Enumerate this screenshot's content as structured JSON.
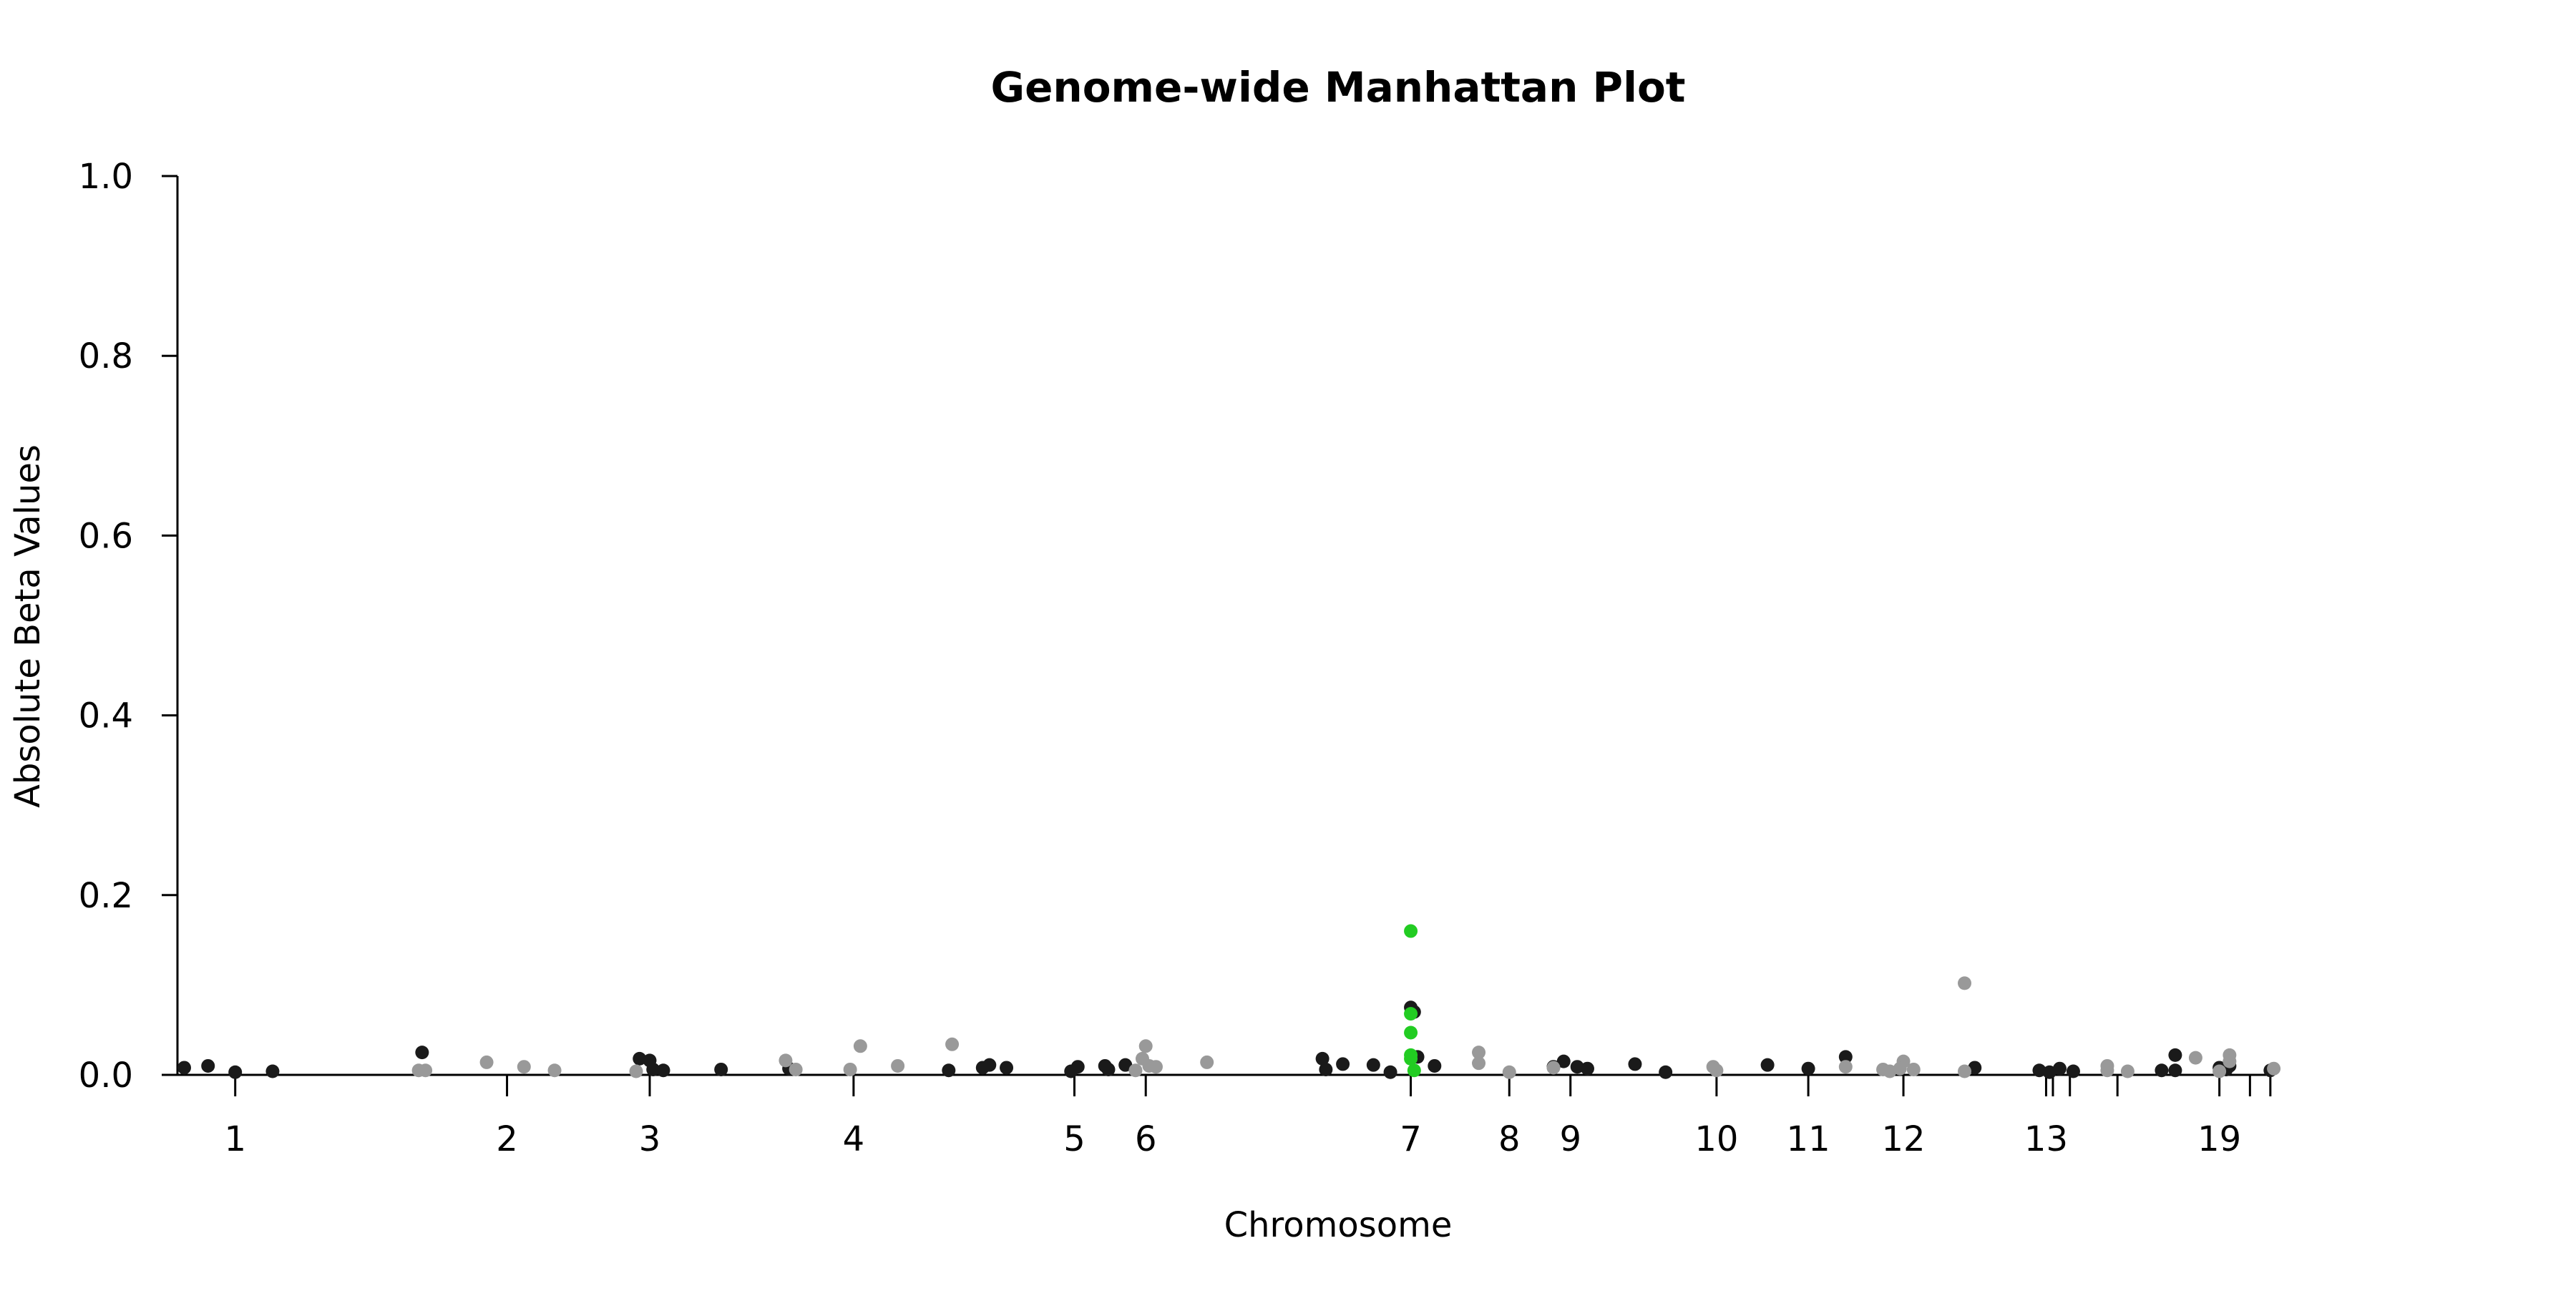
{
  "chart_data": {
    "type": "scatter",
    "title": "Genome-wide Manhattan Plot",
    "xlabel": "Chromosome",
    "ylabel": "Absolute Beta Values",
    "ylim": [
      0,
      1.0
    ],
    "yticks": [
      "0.0",
      "0.2",
      "0.4",
      "0.6",
      "0.8",
      "1.0"
    ],
    "xlim": [
      -0.85,
      32.5
    ],
    "grid": false,
    "x_ticks": [
      {
        "pos": 0.0,
        "label": "1"
      },
      {
        "pos": 4.0,
        "label": "2"
      },
      {
        "pos": 6.1,
        "label": "3"
      },
      {
        "pos": 9.1,
        "label": "4"
      },
      {
        "pos": 12.35,
        "label": "5"
      },
      {
        "pos": 13.4,
        "label": "6"
      },
      {
        "pos": 17.3,
        "label": "7"
      },
      {
        "pos": 18.75,
        "label": "8"
      },
      {
        "pos": 19.65,
        "label": "9"
      },
      {
        "pos": 21.8,
        "label": "10"
      },
      {
        "pos": 23.15,
        "label": "11"
      },
      {
        "pos": 24.55,
        "label": "12"
      },
      {
        "pos": 26.65,
        "label": "13"
      },
      {
        "pos": 26.75,
        "label": ""
      },
      {
        "pos": 27.0,
        "label": ""
      },
      {
        "pos": 27.7,
        "label": ""
      },
      {
        "pos": 29.2,
        "label": "19"
      },
      {
        "pos": 29.65,
        "label": ""
      },
      {
        "pos": 29.95,
        "label": ""
      }
    ],
    "colors": {
      "dark": "#1a1a1a",
      "grey": "#999999",
      "highlight": "#22cc22"
    },
    "series": [
      {
        "color_key": "dark",
        "points": [
          [
            -0.75,
            0.008
          ],
          [
            -0.4,
            0.01
          ],
          [
            0.0,
            0.003
          ],
          [
            0.55,
            0.004
          ],
          [
            2.75,
            0.025
          ],
          [
            5.95,
            0.018
          ],
          [
            6.1,
            0.016
          ],
          [
            6.15,
            0.006
          ],
          [
            6.3,
            0.005
          ],
          [
            7.15,
            0.006
          ],
          [
            8.15,
            0.007
          ],
          [
            10.5,
            0.005
          ],
          [
            11.0,
            0.008
          ],
          [
            11.1,
            0.011
          ],
          [
            11.35,
            0.008
          ],
          [
            12.3,
            0.004
          ],
          [
            12.4,
            0.009
          ],
          [
            12.8,
            0.01
          ],
          [
            12.85,
            0.006
          ],
          [
            13.1,
            0.011
          ],
          [
            16.0,
            0.018
          ],
          [
            16.05,
            0.006
          ],
          [
            16.3,
            0.012
          ],
          [
            16.75,
            0.011
          ],
          [
            17.0,
            0.003
          ],
          [
            17.3,
            0.075
          ],
          [
            17.35,
            0.07
          ],
          [
            17.4,
            0.02
          ],
          [
            17.65,
            0.01
          ],
          [
            19.4,
            0.009
          ],
          [
            19.55,
            0.015
          ],
          [
            19.75,
            0.009
          ],
          [
            19.9,
            0.007
          ],
          [
            20.6,
            0.012
          ],
          [
            21.05,
            0.003
          ],
          [
            22.55,
            0.011
          ],
          [
            23.15,
            0.007
          ],
          [
            23.7,
            0.02
          ],
          [
            25.6,
            0.008
          ],
          [
            26.55,
            0.005
          ],
          [
            26.7,
            0.003
          ],
          [
            26.85,
            0.007
          ],
          [
            27.05,
            0.004
          ],
          [
            28.35,
            0.005
          ],
          [
            28.55,
            0.022
          ],
          [
            28.55,
            0.005
          ],
          [
            29.2,
            0.008
          ],
          [
            29.3,
            0.006
          ],
          [
            29.35,
            0.01
          ],
          [
            29.95,
            0.005
          ]
        ]
      },
      {
        "color_key": "grey",
        "points": [
          [
            2.7,
            0.005
          ],
          [
            2.8,
            0.005
          ],
          [
            3.7,
            0.014
          ],
          [
            4.25,
            0.009
          ],
          [
            4.7,
            0.005
          ],
          [
            5.9,
            0.004
          ],
          [
            8.1,
            0.016
          ],
          [
            8.25,
            0.006
          ],
          [
            9.05,
            0.006
          ],
          [
            9.2,
            0.032
          ],
          [
            9.75,
            0.01
          ],
          [
            10.55,
            0.034
          ],
          [
            13.35,
            0.018
          ],
          [
            13.4,
            0.032
          ],
          [
            13.45,
            0.01
          ],
          [
            13.25,
            0.005
          ],
          [
            13.55,
            0.009
          ],
          [
            14.3,
            0.014
          ],
          [
            18.3,
            0.025
          ],
          [
            18.3,
            0.013
          ],
          [
            18.75,
            0.003
          ],
          [
            19.4,
            0.008
          ],
          [
            21.75,
            0.009
          ],
          [
            21.8,
            0.005
          ],
          [
            23.7,
            0.009
          ],
          [
            24.25,
            0.006
          ],
          [
            24.35,
            0.004
          ],
          [
            24.55,
            0.015
          ],
          [
            24.5,
            0.007
          ],
          [
            24.7,
            0.006
          ],
          [
            25.45,
            0.102
          ],
          [
            25.45,
            0.004
          ],
          [
            27.55,
            0.01
          ],
          [
            27.55,
            0.005
          ],
          [
            27.85,
            0.004
          ],
          [
            28.85,
            0.019
          ],
          [
            29.2,
            0.004
          ],
          [
            29.35,
            0.022
          ],
          [
            29.35,
            0.015
          ],
          [
            30.0,
            0.007
          ]
        ]
      },
      {
        "color_key": "highlight",
        "points": [
          [
            17.3,
            0.16
          ],
          [
            17.3,
            0.068
          ],
          [
            17.3,
            0.047
          ],
          [
            17.3,
            0.022
          ],
          [
            17.3,
            0.018
          ],
          [
            17.35,
            0.005
          ]
        ]
      }
    ]
  }
}
